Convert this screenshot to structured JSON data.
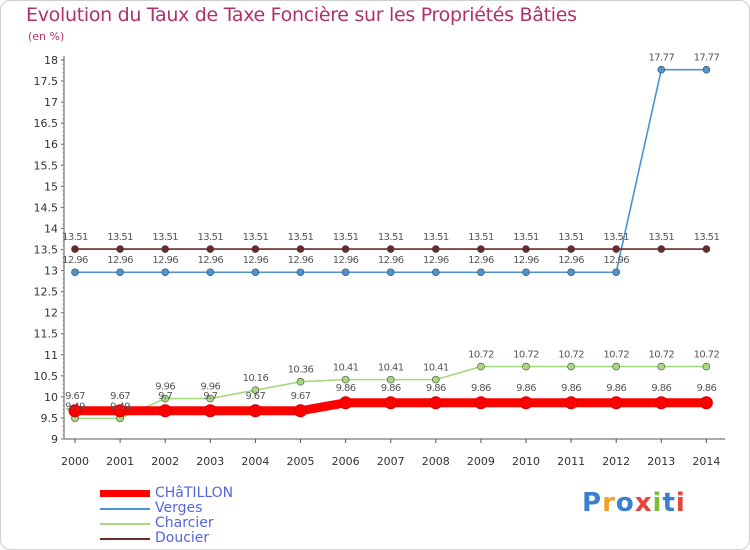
{
  "title": "Evolution du Taux de Taxe Foncière sur les Propriétés Bâties",
  "unit_label": "(en %)",
  "logo": {
    "text": "Proxiti",
    "colors": [
      "#3a7fd0",
      "#f2a02c",
      "#3a7fd0",
      "#e8433a",
      "#7bbf3a",
      "#3a7fd0",
      "#e8433a"
    ]
  },
  "chart_data": {
    "type": "line",
    "title": "Evolution du Taux de Taxe Foncière sur les Propriétés Bâties",
    "ylabel": "(en %)",
    "xlabel": "",
    "x": [
      "2000",
      "2001",
      "2002",
      "2003",
      "2004",
      "2005",
      "2006",
      "2007",
      "2008",
      "2009",
      "2010",
      "2011",
      "2012",
      "2013",
      "2014"
    ],
    "ylim": [
      9,
      18
    ],
    "yticks": [
      "9",
      "9.5",
      "10",
      "10.5",
      "11",
      "11.5",
      "12",
      "12.5",
      "13",
      "13.5",
      "14",
      "14.5",
      "15",
      "15.5",
      "16",
      "16.5",
      "17",
      "17.5",
      "18"
    ],
    "legend_position": "bottom-left",
    "series": [
      {
        "name": "CHâTILLON",
        "color": "#ff0000",
        "values": [
          9.67,
          9.67,
          9.67,
          9.67,
          9.67,
          9.67,
          9.86,
          9.86,
          9.86,
          9.86,
          9.86,
          9.86,
          9.86,
          9.86,
          9.86
        ],
        "labels": [
          "9.67",
          "9.67",
          "9.7",
          "9.7",
          "9.67",
          "9.67",
          "9.86",
          "9.86",
          "9.86",
          "9.86",
          "9.86",
          "9.86",
          "9.86",
          "9.86",
          "9.86"
        ]
      },
      {
        "name": "Verges",
        "color": "#4b93d1",
        "values": [
          12.96,
          12.96,
          12.96,
          12.96,
          12.96,
          12.96,
          12.96,
          12.96,
          12.96,
          12.96,
          12.96,
          12.96,
          12.96,
          17.77,
          17.77
        ],
        "labels": [
          "12.96",
          "12.96",
          "12.96",
          "12.96",
          "12.96",
          "12.96",
          "12.96",
          "12.96",
          "12.96",
          "12.96",
          "12.96",
          "12.96",
          "12.96",
          "17.77",
          "17.77"
        ]
      },
      {
        "name": "Charcier",
        "color": "#a6d97f",
        "values": [
          9.49,
          9.49,
          9.96,
          9.96,
          10.16,
          10.36,
          10.41,
          10.41,
          10.41,
          10.72,
          10.72,
          10.72,
          10.72,
          10.72,
          10.72
        ],
        "labels": [
          "9.49",
          "9.49",
          "9.96",
          "9.96",
          "10.16",
          "10.36",
          "10.41",
          "10.41",
          "10.41",
          "10.72",
          "10.72",
          "10.72",
          "10.72",
          "10.72",
          "10.72"
        ]
      },
      {
        "name": "Doucier",
        "color": "#6b2a2a",
        "values": [
          13.51,
          13.51,
          13.51,
          13.51,
          13.51,
          13.51,
          13.51,
          13.51,
          13.51,
          13.51,
          13.51,
          13.51,
          13.51,
          13.51,
          13.51
        ],
        "labels": [
          "13.51",
          "13.51",
          "13.51",
          "13.51",
          "13.51",
          "13.51",
          "13.51",
          "13.51",
          "13.51",
          "13.51",
          "13.51",
          "13.51",
          "13.51",
          "13.51",
          "13.51"
        ]
      }
    ]
  }
}
